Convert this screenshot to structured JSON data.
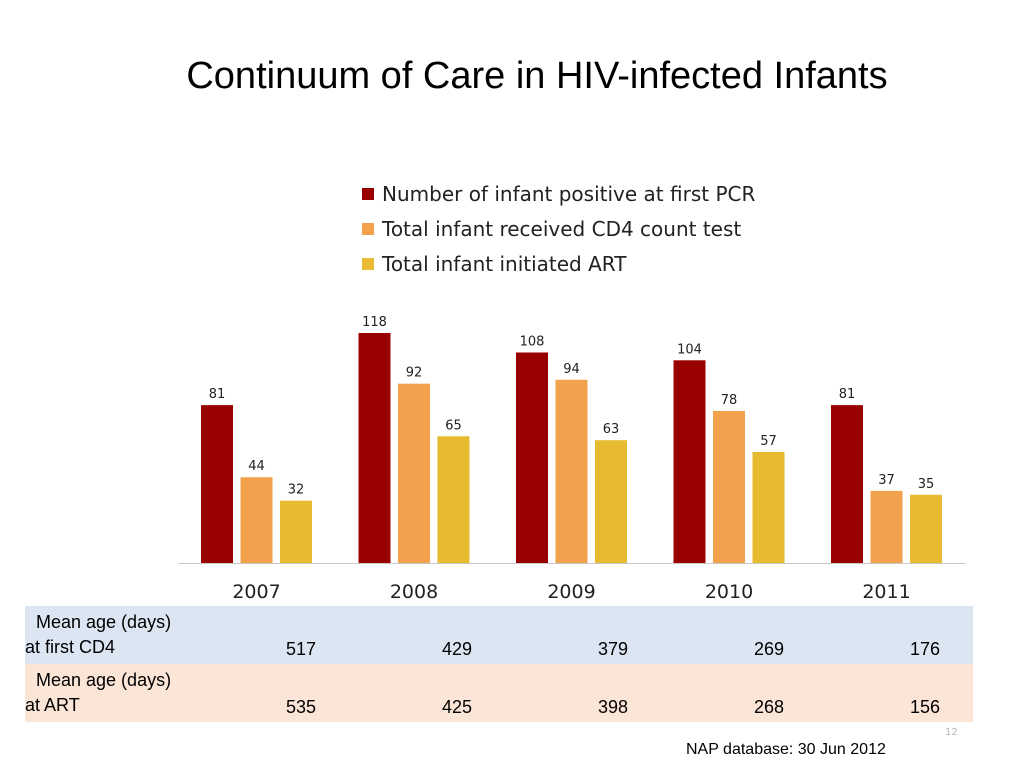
{
  "title": "Continuum of Care in HIV-infected Infants",
  "chart_data": {
    "type": "bar",
    "categories": [
      "2007",
      "2008",
      "2009",
      "2010",
      "2011"
    ],
    "series": [
      {
        "name": "Number of infant positive at first PCR",
        "color": "#990000",
        "values": [
          81,
          118,
          108,
          104,
          81
        ]
      },
      {
        "name": "Total infant received CD4 count test",
        "color": "#f2a14c",
        "values": [
          44,
          92,
          94,
          78,
          37
        ]
      },
      {
        "name": "Total infant initiated ART",
        "color": "#e6bb30",
        "values": [
          32,
          65,
          63,
          57,
          35
        ]
      }
    ],
    "ylim": [
      0,
      118
    ],
    "grid": false,
    "legend_position": "top"
  },
  "table": {
    "rows": [
      {
        "label_line1": "Mean age (days)",
        "label_line2": "at first CD4",
        "values": [
          "517",
          "429",
          "379",
          "269",
          "176"
        ]
      },
      {
        "label_line1": "Mean age (days)",
        "label_line2": "at ART",
        "values": [
          "535",
          "425",
          "398",
          "268",
          "156"
        ]
      }
    ]
  },
  "page_number": "12",
  "source": "NAP database: 30 Jun 2012"
}
